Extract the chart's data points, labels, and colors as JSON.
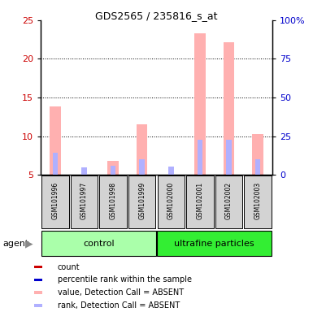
{
  "title": "GDS2565 / 235816_s_at",
  "samples": [
    "GSM101996",
    "GSM101997",
    "GSM101998",
    "GSM101999",
    "GSM102000",
    "GSM102001",
    "GSM102002",
    "GSM102003"
  ],
  "value_absent": [
    13.8,
    0.0,
    6.8,
    11.5,
    0.0,
    23.3,
    22.2,
    10.3
  ],
  "rank_absent": [
    7.8,
    6.0,
    6.2,
    7.0,
    6.1,
    9.5,
    9.5,
    7.0
  ],
  "ylim_left": [
    5,
    25
  ],
  "ylim_right": [
    0,
    100
  ],
  "yticks_left": [
    5,
    10,
    15,
    20,
    25
  ],
  "ytick_labels_right": [
    "0",
    "25",
    "50",
    "75",
    "100%"
  ],
  "color_count": "#cc0000",
  "color_rank": "#0000cc",
  "color_value_absent": "#ffb0b0",
  "color_rank_absent": "#b0b0ff",
  "color_left_axis": "#cc0000",
  "color_right_axis": "#0000cc",
  "control_color": "#aaffaa",
  "ultrafine_color": "#33ee33",
  "label_box_color": "#d3d3d3",
  "legend_colors": [
    "#cc0000",
    "#0000cc",
    "#ffb0b0",
    "#b0b0ff"
  ],
  "legend_labels": [
    "count",
    "percentile rank within the sample",
    "value, Detection Call = ABSENT",
    "rank, Detection Call = ABSENT"
  ],
  "agent_label": "agent",
  "title_fontsize": 9,
  "axis_fontsize": 8,
  "label_fontsize": 5.5,
  "group_fontsize": 8,
  "legend_fontsize": 7
}
